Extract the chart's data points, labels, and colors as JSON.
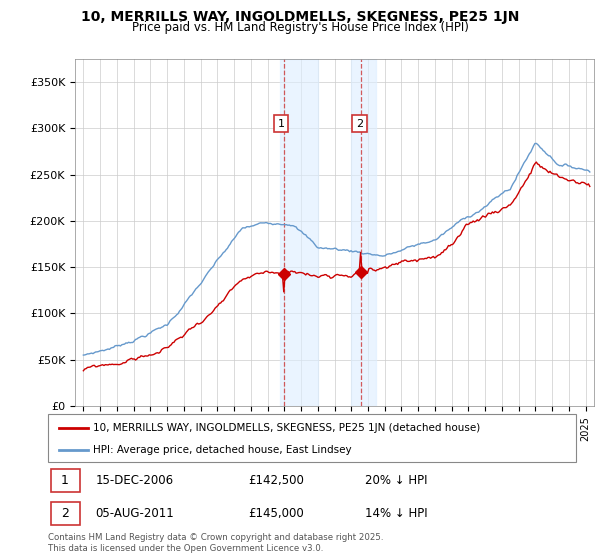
{
  "title": "10, MERRILLS WAY, INGOLDMELLS, SKEGNESS, PE25 1JN",
  "subtitle": "Price paid vs. HM Land Registry's House Price Index (HPI)",
  "legend_line1": "10, MERRILLS WAY, INGOLDMELLS, SKEGNESS, PE25 1JN (detached house)",
  "legend_line2": "HPI: Average price, detached house, East Lindsey",
  "footnote": "Contains HM Land Registry data © Crown copyright and database right 2025.\nThis data is licensed under the Open Government Licence v3.0.",
  "transaction1_date": "15-DEC-2006",
  "transaction1_price": "£142,500",
  "transaction1_hpi": "20% ↓ HPI",
  "transaction2_date": "05-AUG-2011",
  "transaction2_price": "£145,000",
  "transaction2_hpi": "14% ↓ HPI",
  "property_color": "#cc0000",
  "hpi_color": "#6699cc",
  "shade_color": "#ddeeff",
  "vline_color": "#cc3333",
  "ylim": [
    0,
    375000
  ],
  "yticks": [
    0,
    50000,
    100000,
    150000,
    200000,
    250000,
    300000,
    350000
  ],
  "ytick_labels": [
    "£0",
    "£50K",
    "£100K",
    "£150K",
    "£200K",
    "£250K",
    "£300K",
    "£350K"
  ],
  "marker1_x": 2006.96,
  "marker1_y": 142500,
  "marker2_x": 2011.59,
  "marker2_y": 145000,
  "shade1_xmin": 2006.75,
  "shade1_xmax": 2009.0,
  "shade2_xmin": 2011.0,
  "shade2_xmax": 2012.5,
  "xlim_left": 1994.5,
  "xlim_right": 2025.5
}
